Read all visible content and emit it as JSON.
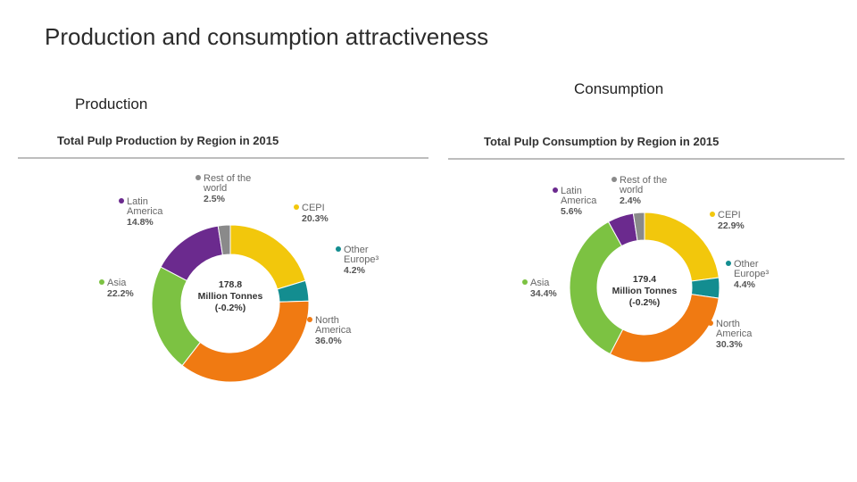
{
  "slide": {
    "title": "Production and consumption attractiveness",
    "production_label": "Production",
    "consumption_label": "Consumption"
  },
  "colors": {
    "CEPI": "#f2c70c",
    "Other Europe": "#138d90",
    "North America": "#f07a12",
    "Asia": "#7cc242",
    "Latin America": "#6b2a8e",
    "Rest of the world": "#8a8a8a"
  },
  "chart_data": [
    {
      "type": "pie",
      "donut": true,
      "title": "Total Pulp  Production by Region in 2015",
      "center": [
        "178.8",
        "Million Tonnes",
        "(-0.2%)"
      ],
      "slices": [
        {
          "name": "CEPI",
          "value": 20.3,
          "display": "20.3%",
          "label_lines": [
            "CEPI"
          ]
        },
        {
          "name": "Other Europe",
          "value": 4.2,
          "display": "4.2%",
          "label_lines": [
            "Other",
            "Europe³"
          ]
        },
        {
          "name": "North America",
          "value": 36.0,
          "display": "36.0%",
          "label_lines": [
            "North",
            "America"
          ]
        },
        {
          "name": "Asia",
          "value": 22.2,
          "display": "22.2%",
          "label_lines": [
            "Asia"
          ]
        },
        {
          "name": "Latin America",
          "value": 14.8,
          "display": "14.8%",
          "label_lines": [
            "Latin",
            "America"
          ]
        },
        {
          "name": "Rest of the world",
          "value": 2.5,
          "display": "2.5%",
          "label_lines": [
            "Rest of the",
            "world"
          ]
        }
      ]
    },
    {
      "type": "pie",
      "donut": true,
      "title": "Total Pulp  Consumption by Region in 2015",
      "center": [
        "179.4",
        "Million Tonnes",
        "(-0.2%)"
      ],
      "slices": [
        {
          "name": "CEPI",
          "value": 22.9,
          "display": "22.9%",
          "label_lines": [
            "CEPI"
          ]
        },
        {
          "name": "Other Europe",
          "value": 4.4,
          "display": "4.4%",
          "label_lines": [
            "Other",
            "Europe³"
          ]
        },
        {
          "name": "North America",
          "value": 30.3,
          "display": "30.3%",
          "label_lines": [
            "North",
            "America"
          ]
        },
        {
          "name": "Asia",
          "value": 34.4,
          "display": "34.4%",
          "label_lines": [
            "Asia"
          ]
        },
        {
          "name": "Latin America",
          "value": 5.6,
          "display": "5.6%",
          "label_lines": [
            "Latin",
            "America"
          ]
        },
        {
          "name": "Rest of the world",
          "value": 2.4,
          "display": "2.4%",
          "label_lines": [
            "Rest of the",
            "world"
          ]
        }
      ]
    }
  ]
}
